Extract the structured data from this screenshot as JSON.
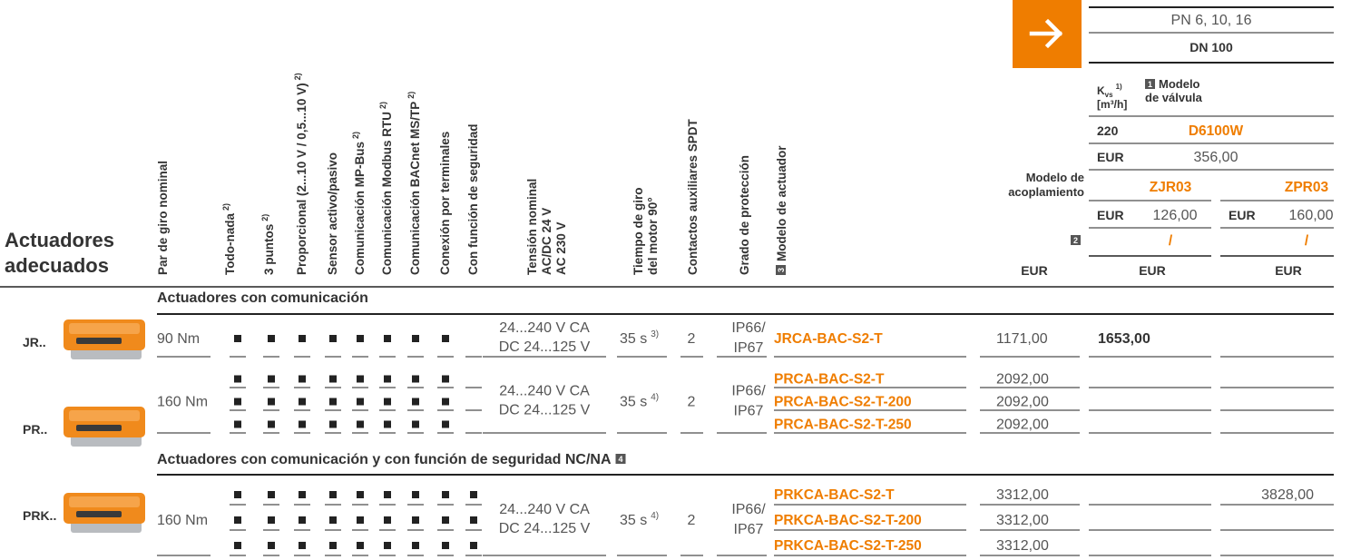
{
  "header": {
    "title_lines": [
      "Actuadores",
      "adecuados"
    ],
    "columns": [
      {
        "lines": [
          "Par de giro nominal"
        ]
      },
      {
        "lines": [
          "Todo-nada"
        ],
        "note": "2)"
      },
      {
        "lines": [
          "3 puntos"
        ],
        "note": "2)"
      },
      {
        "lines": [
          "Proporcional (2...10 V / 0,5...10 V)"
        ],
        "note": "2)"
      },
      {
        "lines": [
          "Sensor activo/pasivo"
        ]
      },
      {
        "lines": [
          "Comunicación MP-Bus"
        ],
        "note": "2)"
      },
      {
        "lines": [
          "Comunicación Modbus RTU"
        ],
        "note": "2)"
      },
      {
        "lines": [
          "Comunicación BACnet MS/TP"
        ],
        "note": "2)"
      },
      {
        "lines": [
          "Conexión por terminales"
        ]
      },
      {
        "lines": [
          "Con función de seguridad"
        ]
      },
      {
        "lines": [
          "Tensión nominal",
          "AC/DC 24 V",
          "AC 230 V"
        ]
      },
      {
        "lines": [
          "Tiempo de giro",
          "del motor 90°"
        ]
      },
      {
        "lines": [
          "Contactos auxiliares SPDT"
        ]
      },
      {
        "lines": [
          "Grado de protección"
        ]
      },
      {
        "lines": [
          "Modelo de actuador"
        ],
        "badge": "3"
      }
    ]
  },
  "valve_panel": {
    "pressure": "PN 6, 10, 16",
    "size": "DN 100",
    "kvs": {
      "symbol": "K",
      "subscript": "vs",
      "note": "1)",
      "unit": "[m³/h]"
    },
    "valve_model_label": {
      "badge": "1",
      "lines": [
        "Modelo",
        "de válvula"
      ]
    },
    "kvs_value": "220",
    "valve_model": "D6100W",
    "currency": "EUR",
    "valve_price": "356,00",
    "coupling_label": [
      "Modelo de",
      "acoplamiento"
    ],
    "couplings": [
      {
        "model": "ZJR03",
        "currency": "EUR",
        "price": "126,00",
        "extra": "/"
      },
      {
        "model": "ZPR03",
        "currency": "EUR",
        "price": "160,00",
        "extra": "/"
      }
    ],
    "extra_badge": "2",
    "column_currencies": [
      "EUR",
      "EUR",
      "EUR"
    ]
  },
  "sections": [
    {
      "title": "Actuadores con comunicación",
      "groups": [
        {
          "label": "JR..",
          "torque": "90 Nm",
          "voltage": [
            "24...240 V CA",
            "DC 24...125 V"
          ],
          "time": "35 s",
          "time_note": "3)",
          "contacts": "2",
          "protection": [
            "IP66/",
            "IP67"
          ],
          "models": [
            {
              "name": "JRCA-BAC-S2-T",
              "price": "1171,00",
              "features": [
                true,
                true,
                true,
                true,
                true,
                true,
                true,
                true,
                false
              ],
              "combo_prices": [
                "1653,00",
                null
              ]
            }
          ]
        },
        {
          "label": "PR..",
          "torque": "160 Nm",
          "voltage": [
            "24...240 V CA",
            "DC 24...125 V"
          ],
          "time": "35 s",
          "time_note": "4)",
          "contacts": "2",
          "protection": [
            "IP66/",
            "IP67"
          ],
          "models": [
            {
              "name": "PRCA-BAC-S2-T",
              "price": "2092,00",
              "features": [
                true,
                true,
                true,
                true,
                true,
                true,
                true,
                true,
                false
              ],
              "combo_prices": [
                null,
                null
              ]
            },
            {
              "name": "PRCA-BAC-S2-T-200",
              "price": "2092,00",
              "features": [
                true,
                true,
                true,
                true,
                true,
                true,
                true,
                true,
                false
              ],
              "combo_prices": [
                null,
                null
              ]
            },
            {
              "name": "PRCA-BAC-S2-T-250",
              "price": "2092,00",
              "features": [
                true,
                true,
                true,
                true,
                true,
                true,
                true,
                true,
                false
              ],
              "combo_prices": [
                null,
                null
              ]
            }
          ]
        }
      ]
    },
    {
      "title": "Actuadores con comunicación y con función de seguridad NC/NA",
      "badge": "4",
      "groups": [
        {
          "label": "PRK..",
          "torque": "160 Nm",
          "voltage": [
            "24...240 V CA",
            "DC 24...125 V"
          ],
          "time": "35 s",
          "time_note": "4)",
          "contacts": "2",
          "protection": [
            "IP66/",
            "IP67"
          ],
          "models": [
            {
              "name": "PRKCA-BAC-S2-T",
              "price": "3312,00",
              "features": [
                true,
                true,
                true,
                true,
                true,
                true,
                true,
                true,
                true
              ],
              "combo_prices": [
                null,
                "3828,00"
              ]
            },
            {
              "name": "PRKCA-BAC-S2-T-200",
              "price": "3312,00",
              "features": [
                true,
                true,
                true,
                true,
                true,
                true,
                true,
                true,
                true
              ],
              "combo_prices": [
                null,
                null
              ]
            },
            {
              "name": "PRKCA-BAC-S2-T-250",
              "price": "3312,00",
              "features": [
                true,
                true,
                true,
                true,
                true,
                true,
                true,
                true,
                true
              ],
              "combo_prices": [
                null,
                null
              ]
            }
          ]
        }
      ]
    }
  ]
}
